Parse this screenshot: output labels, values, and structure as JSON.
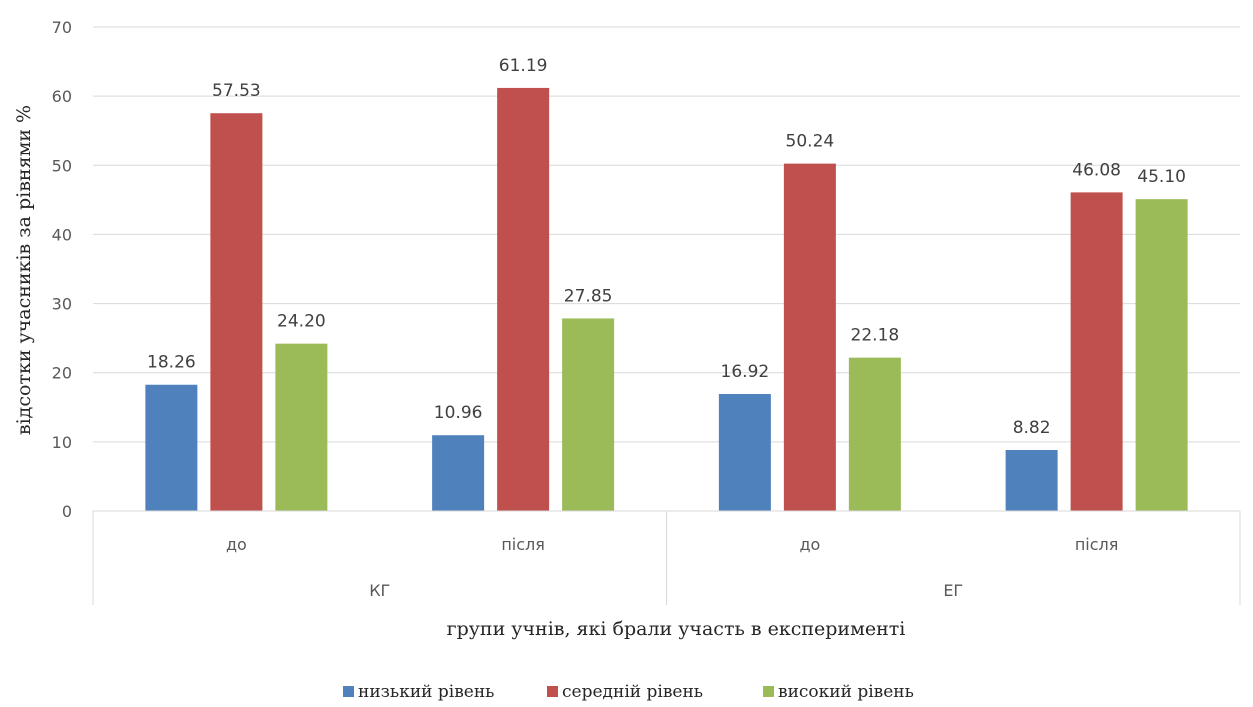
{
  "chart_data": {
    "type": "bar",
    "ylabel": "відсотки учасників за рівнями %",
    "xlabel": "групи учнів, які брали участь в експерименті",
    "ylim": [
      0,
      70
    ],
    "yticks": [
      0,
      10,
      20,
      30,
      40,
      50,
      60,
      70
    ],
    "grid": true,
    "legend_position": "bottom",
    "groups": [
      {
        "label": "КГ",
        "categories": [
          "до",
          "після"
        ]
      },
      {
        "label": "ЕГ",
        "categories": [
          "до",
          "після"
        ]
      }
    ],
    "series": [
      {
        "name": "низький рівень",
        "color": "#4F81BD",
        "values": [
          18.26,
          10.96,
          16.92,
          8.82
        ],
        "labels": [
          "18.26",
          "10.96",
          "16.92",
          "8.82"
        ]
      },
      {
        "name": "середній рівень",
        "color": "#C0504D",
        "values": [
          57.53,
          61.19,
          50.24,
          46.08
        ],
        "labels": [
          "57.53",
          "61.19",
          "50.24",
          "46.08"
        ]
      },
      {
        "name": "високий рівень",
        "color": "#9BBB59",
        "values": [
          24.2,
          27.85,
          22.18,
          45.1
        ],
        "labels": [
          "24.20",
          "27.85",
          "22.18",
          "45.10"
        ]
      }
    ]
  }
}
